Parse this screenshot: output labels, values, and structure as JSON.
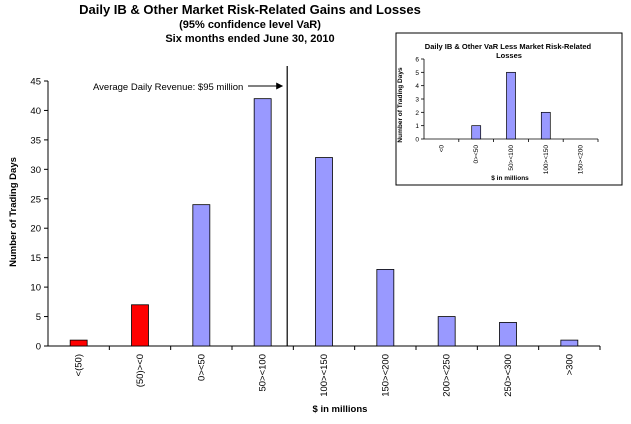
{
  "colors": {
    "positive_bar": "#9999ff",
    "negative_bar": "#ff0000",
    "bar_stroke": "#000000"
  },
  "chart_data": [
    {
      "id": "main",
      "type": "bar",
      "title": "Daily IB & Other Market Risk-Related Gains and Losses",
      "subtitle": [
        "(95% confidence  level VaR)",
        "Six months ended June 30, 2010"
      ],
      "xlabel": "$ in millions",
      "ylabel": "Number of Trading Days",
      "ylim": [
        0,
        45
      ],
      "yticks": [
        0,
        5,
        10,
        15,
        20,
        25,
        30,
        35,
        40,
        45
      ],
      "categories": [
        "<(50)",
        "(50)><0",
        "0><50",
        "50><100",
        "100><150",
        "150><200",
        "200><250",
        "250><300",
        ">300"
      ],
      "values": [
        1,
        7,
        24,
        42,
        32,
        13,
        5,
        4,
        1
      ],
      "bar_colors": [
        "negative",
        "negative",
        "positive",
        "positive",
        "positive",
        "positive",
        "positive",
        "positive",
        "positive"
      ],
      "annotation": {
        "text": "Average Daily Revenue: $95 million",
        "reference_x": 95
      },
      "grid": false,
      "legend": "none"
    },
    {
      "id": "inset",
      "type": "bar",
      "title": "Daily IB & Other VaR Less Market Risk-Related Losses",
      "xlabel": "$ in millions",
      "ylabel": "Number of Trading Days",
      "ylim": [
        0,
        6
      ],
      "yticks": [
        0,
        1,
        2,
        3,
        4,
        5,
        6
      ],
      "categories": [
        "<0",
        "0><50",
        "50><100",
        "100><150",
        "150><200"
      ],
      "values": [
        0,
        1,
        5,
        2,
        0
      ],
      "grid": false,
      "legend": "none"
    }
  ]
}
